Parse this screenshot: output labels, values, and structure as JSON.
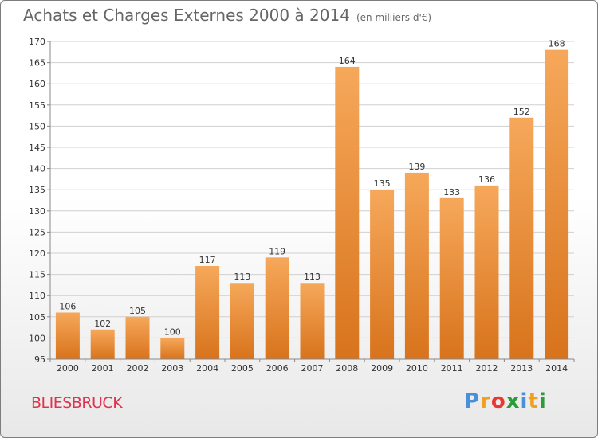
{
  "title": "Achats et Charges Externes 2000 à 2014",
  "subtitle": "(en milliers d'€)",
  "commune": "BLIESBRUCK",
  "brand": {
    "letters": [
      {
        "char": "P",
        "color": "#4a90d9"
      },
      {
        "char": "r",
        "color": "#f0a020"
      },
      {
        "char": "o",
        "color": "#e8382f"
      },
      {
        "char": "x",
        "color": "#2a9d3a"
      },
      {
        "char": "i",
        "color": "#4a90d9"
      },
      {
        "char": "t",
        "color": "#f0a020"
      },
      {
        "char": "i",
        "color": "#2a9d3a"
      }
    ]
  },
  "colors": {
    "bar_light": "#f6a85a",
    "bar_dark": "#d8731c",
    "grid": "#d0d0d0",
    "axis": "#888888",
    "text": "#333333",
    "commune": "#e0334f"
  },
  "chart_data": {
    "type": "bar",
    "title": "Achats et Charges Externes 2000 à 2014",
    "subtitle": "(en milliers d'€)",
    "categories": [
      "2000",
      "2001",
      "2002",
      "2003",
      "2004",
      "2005",
      "2006",
      "2007",
      "2008",
      "2009",
      "2010",
      "2011",
      "2012",
      "2013",
      "2014"
    ],
    "values": [
      106,
      102,
      105,
      100,
      117,
      113,
      119,
      113,
      164,
      135,
      139,
      133,
      136,
      152,
      168
    ],
    "ylim": [
      95,
      170
    ],
    "yticks": [
      95,
      100,
      105,
      110,
      115,
      120,
      125,
      130,
      135,
      140,
      145,
      150,
      155,
      160,
      165,
      170
    ],
    "grid": true,
    "data_labels": true
  }
}
